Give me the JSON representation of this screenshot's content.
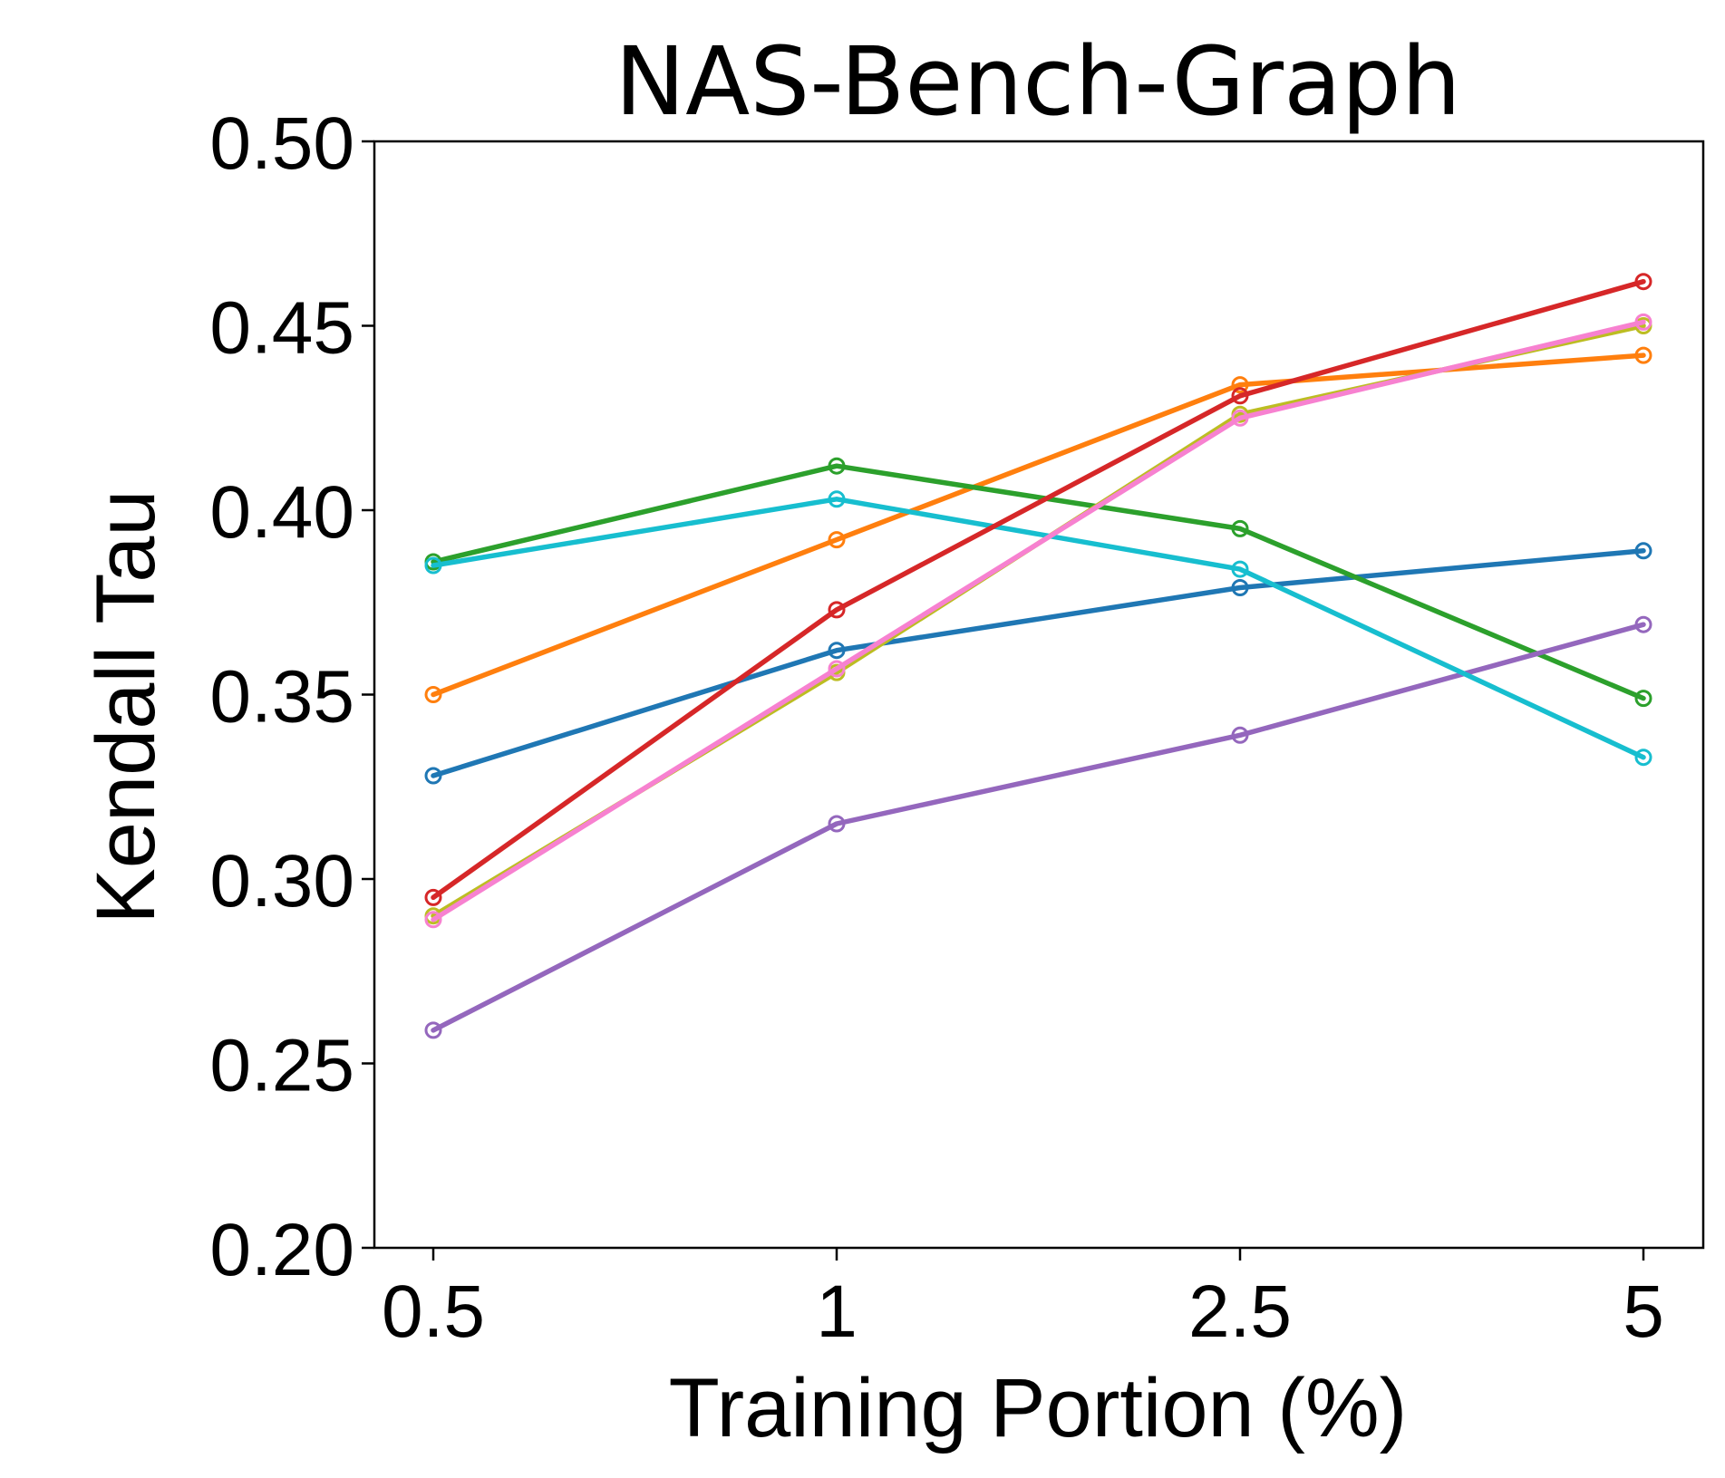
{
  "chart_data": {
    "type": "line",
    "title": "NAS-Bench-Graph",
    "xlabel": "Training Portion (%)",
    "ylabel": "Kendall Tau",
    "categories": [
      "0.5",
      "1",
      "2.5",
      "5"
    ],
    "ylim": [
      0.2,
      0.5
    ],
    "yticks": [
      0.2,
      0.25,
      0.3,
      0.35,
      0.4,
      0.45,
      0.5
    ],
    "ytick_labels": [
      "0.20",
      "0.25",
      "0.30",
      "0.35",
      "0.40",
      "0.45",
      "0.50"
    ],
    "grid": false,
    "legend": "none",
    "series": [
      {
        "name": "series-blue",
        "color": "#1f77b4",
        "values": [
          0.328,
          0.362,
          0.379,
          0.389
        ]
      },
      {
        "name": "series-orange",
        "color": "#ff7f0e",
        "values": [
          0.35,
          0.392,
          0.434,
          0.442
        ]
      },
      {
        "name": "series-green",
        "color": "#2ca02c",
        "values": [
          0.386,
          0.412,
          0.395,
          0.349
        ]
      },
      {
        "name": "series-purple",
        "color": "#9467bd",
        "values": [
          0.259,
          0.315,
          0.339,
          0.369
        ]
      },
      {
        "name": "series-olive",
        "color": "#bcbd22",
        "values": [
          0.29,
          0.356,
          0.426,
          0.45
        ]
      },
      {
        "name": "series-cyan",
        "color": "#17becf",
        "values": [
          0.385,
          0.403,
          0.384,
          0.333
        ]
      },
      {
        "name": "series-red",
        "color": "#d62728",
        "values": [
          0.295,
          0.373,
          0.431,
          0.462
        ]
      },
      {
        "name": "series-pink",
        "color": "#f781d0",
        "values": [
          0.289,
          0.357,
          0.425,
          0.451
        ]
      }
    ]
  }
}
